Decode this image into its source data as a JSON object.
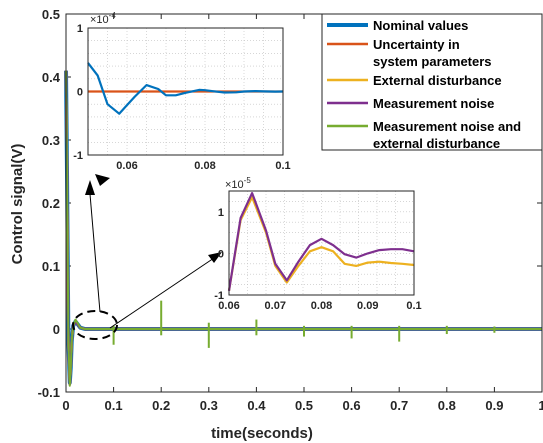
{
  "chart_data": {
    "type": "line",
    "xlabel": "time(seconds)",
    "ylabel": "Control signal(V)",
    "xlim": [
      0,
      1
    ],
    "ylim": [
      -0.1,
      0.5
    ],
    "xticks": [
      0,
      0.1,
      0.2,
      0.3,
      0.4,
      0.5,
      0.6,
      0.7,
      0.8,
      0.9,
      1
    ],
    "xtick_labels": [
      "0",
      "0.1",
      "0.2",
      "0.3",
      "0.4",
      "0.5",
      "0.6",
      "0.7",
      "0.8",
      "0.9",
      "1"
    ],
    "yticks": [
      -0.1,
      0,
      0.1,
      0.2,
      0.3,
      0.4,
      0.5
    ],
    "ytick_labels": [
      "-0.1",
      "0",
      "0.1",
      "0.2",
      "0.3",
      "0.4",
      "0.5"
    ],
    "grid": false,
    "legend_position": "top-right",
    "series": [
      {
        "name": "Nominal values",
        "color": "#0072BD",
        "x": [
          0,
          0.002,
          0.005,
          0.008,
          0.01,
          0.012,
          0.015,
          0.02,
          0.03,
          0.04,
          0.1,
          1
        ],
        "y": [
          0.41,
          0.25,
          -0.02,
          -0.085,
          -0.06,
          -0.02,
          0.005,
          0.012,
          0.002,
          0,
          0,
          0
        ]
      },
      {
        "name": "Uncertainty in\nsystem parameters",
        "color": "#D95319",
        "x": [
          0,
          0.002,
          0.005,
          0.008,
          0.01,
          0.012,
          0.015,
          0.02,
          0.03,
          0.04,
          0.1,
          1
        ],
        "y": [
          0.41,
          0.25,
          -0.02,
          -0.087,
          -0.06,
          -0.02,
          0.005,
          0.012,
          0.002,
          0,
          0,
          0
        ]
      },
      {
        "name": "External disturbance",
        "color": "#EDB120",
        "x": [
          0,
          0.002,
          0.005,
          0.008,
          0.01,
          0.012,
          0.015,
          0.02,
          0.03,
          0.04,
          0.1,
          1
        ],
        "y": [
          0.41,
          0.25,
          -0.02,
          -0.088,
          -0.06,
          -0.02,
          0.005,
          0.012,
          0.002,
          0,
          0,
          0
        ]
      },
      {
        "name": "Measurement noise",
        "color": "#7E2F8E",
        "x": [
          0,
          0.002,
          0.005,
          0.008,
          0.01,
          0.012,
          0.015,
          0.02,
          0.03,
          0.04,
          0.1,
          1
        ],
        "y": [
          0.41,
          0.25,
          -0.02,
          -0.088,
          -0.06,
          -0.02,
          0.005,
          0.012,
          0.002,
          0,
          0,
          0
        ]
      },
      {
        "name": "Measurement noise and\nexternal disturbance",
        "color": "#77AC30",
        "x": [
          0,
          0.002,
          0.005,
          0.008,
          0.01,
          0.012,
          0.015,
          0.02,
          0.03,
          0.04,
          0.1,
          1
        ],
        "y": [
          0.41,
          0.25,
          -0.02,
          -0.09,
          -0.06,
          -0.02,
          0.005,
          0.015,
          0.002,
          0,
          0,
          0
        ],
        "spikes": [
          {
            "t": 0.1,
            "y_min": -0.025,
            "y_max": 0.005
          },
          {
            "t": 0.2,
            "y_min": -0.01,
            "y_max": 0.045
          },
          {
            "t": 0.3,
            "y_min": -0.03,
            "y_max": 0.01
          },
          {
            "t": 0.4,
            "y_min": -0.01,
            "y_max": 0.015
          },
          {
            "t": 0.5,
            "y_min": -0.012,
            "y_max": 0.005
          },
          {
            "t": 0.6,
            "y_min": -0.015,
            "y_max": 0.005
          },
          {
            "t": 0.7,
            "y_min": -0.02,
            "y_max": 0.005
          },
          {
            "t": 0.8,
            "y_min": -0.008,
            "y_max": 0.005
          },
          {
            "t": 0.9,
            "y_min": -0.006,
            "y_max": 0.004
          }
        ]
      }
    ],
    "insets": [
      {
        "scale_label": "×10",
        "scale_exponent": "-4",
        "xlim": [
          0.05,
          0.1
        ],
        "ylim": [
          -1,
          1
        ],
        "xticks": [
          0.06,
          0.08,
          0.1
        ],
        "xtick_labels": [
          "0.06",
          "0.08",
          "0.1"
        ],
        "yticks": [
          -1,
          0,
          1
        ],
        "ytick_labels": [
          "-1",
          "0",
          "1"
        ],
        "series": [
          {
            "name": "Uncertainty in\nsystem parameters",
            "color": "#D95319",
            "x": [
              0.05,
              0.1
            ],
            "y": [
              0,
              0
            ]
          },
          {
            "name": "Nominal values",
            "color": "#0072BD",
            "x": [
              0.05,
              0.0525,
              0.055,
              0.058,
              0.062,
              0.065,
              0.068,
              0.07,
              0.0725,
              0.075,
              0.0785,
              0.08,
              0.082,
              0.085,
              0.088,
              0.09,
              0.093,
              0.095,
              0.098,
              0.1
            ],
            "y": [
              0.45,
              0.25,
              -0.2,
              -0.35,
              -0.08,
              0.1,
              0.04,
              -0.06,
              -0.06,
              -0.02,
              0.025,
              0.02,
              0.005,
              -0.015,
              -0.012,
              0.0,
              0.006,
              0.002,
              -0.002,
              0
            ]
          }
        ]
      },
      {
        "scale_label": "×10",
        "scale_exponent": "-5",
        "xlim": [
          0.06,
          0.1
        ],
        "ylim": [
          -1,
          1.5
        ],
        "xticks": [
          0.06,
          0.07,
          0.08,
          0.09,
          0.1
        ],
        "xtick_labels": [
          "0.06",
          "0.07",
          "0.08",
          "0.09",
          "0.1"
        ],
        "yticks": [
          -1,
          0,
          1
        ],
        "ytick_labels": [
          "-1",
          "0",
          "1"
        ],
        "series": [
          {
            "name": "External disturbance",
            "color": "#EDB120",
            "x": [
              0.06,
              0.0625,
              0.065,
              0.068,
              0.07,
              0.0725,
              0.075,
              0.0775,
              0.08,
              0.0825,
              0.085,
              0.0875,
              0.09,
              0.0925,
              0.095,
              0.0975,
              0.1
            ],
            "y": [
              -0.9,
              0.8,
              1.35,
              0.5,
              -0.3,
              -0.7,
              -0.3,
              0.05,
              0.15,
              0.05,
              -0.25,
              -0.3,
              -0.22,
              -0.2,
              -0.23,
              -0.25,
              -0.28
            ]
          },
          {
            "name": "Measurement noise",
            "color": "#7E2F8E",
            "x": [
              0.06,
              0.0625,
              0.065,
              0.068,
              0.07,
              0.0725,
              0.075,
              0.0775,
              0.08,
              0.0825,
              0.085,
              0.0875,
              0.09,
              0.0925,
              0.095,
              0.0975,
              0.1
            ],
            "y": [
              -0.9,
              0.85,
              1.45,
              0.55,
              -0.25,
              -0.65,
              -0.2,
              0.2,
              0.35,
              0.2,
              -0.02,
              -0.1,
              0.0,
              0.08,
              0.1,
              0.1,
              0.05
            ]
          }
        ]
      }
    ]
  }
}
